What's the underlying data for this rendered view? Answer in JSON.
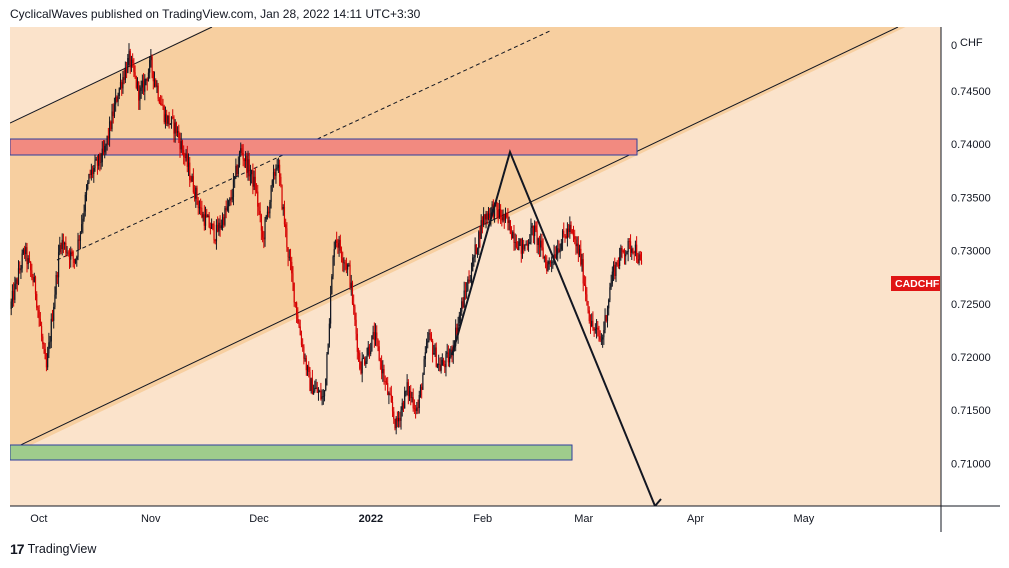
{
  "header": {
    "publisher_line": "CyclicalWaves published on TradingView.com, Jan 28, 2022 14:11 UTC+3:30"
  },
  "footer": {
    "brand": "TradingView",
    "brand_icon": "tradingview-logo-icon"
  },
  "colors": {
    "candle_up": "#131722",
    "candle_down": "#d50000",
    "channel_fill": "#f7cfa0",
    "background": "#fbe3cb",
    "resistance_zone": "#f28a80",
    "support_zone": "#9fcc8c",
    "zone_border": "#2c3e9e",
    "symbol_badge": "#e01414"
  },
  "chart_data": {
    "type": "candlestick",
    "symbol": "CADCHF",
    "currency": "CHF",
    "x_axis": {
      "ticks": [
        "Oct",
        "Nov",
        "Dec",
        "2022",
        "Feb",
        "Mar",
        "Apr",
        "May"
      ],
      "range": [
        "2021-09-23",
        "2022-06-08"
      ]
    },
    "y_axis": {
      "ticks": [
        "0.74500",
        "0.74000",
        "0.73500",
        "0.73000",
        "0.72500",
        "0.72000",
        "0.71500",
        "0.71000"
      ],
      "top_tick": "0",
      "range": [
        0.706,
        0.751
      ]
    },
    "last_price": 0.7283,
    "price_path": [
      [
        "2021-09-23",
        0.7245
      ],
      [
        "2021-09-27",
        0.73
      ],
      [
        "2021-09-30",
        0.7265
      ],
      [
        "2021-10-03",
        0.7185
      ],
      [
        "2021-10-07",
        0.731
      ],
      [
        "2021-10-11",
        0.729
      ],
      [
        "2021-10-15",
        0.737
      ],
      [
        "2021-10-19",
        0.739
      ],
      [
        "2021-10-23",
        0.745
      ],
      [
        "2021-10-26",
        0.748
      ],
      [
        "2021-10-29",
        0.7445
      ],
      [
        "2021-11-01",
        0.7475
      ],
      [
        "2021-11-05",
        0.7425
      ],
      [
        "2021-11-08",
        0.7415
      ],
      [
        "2021-11-12",
        0.737
      ],
      [
        "2021-11-15",
        0.7335
      ],
      [
        "2021-11-19",
        0.7315
      ],
      [
        "2021-11-23",
        0.7345
      ],
      [
        "2021-11-26",
        0.7395
      ],
      [
        "2021-11-30",
        0.736
      ],
      [
        "2021-12-02",
        0.731
      ],
      [
        "2021-12-06",
        0.7385
      ],
      [
        "2021-12-09",
        0.73
      ],
      [
        "2021-12-12",
        0.723
      ],
      [
        "2021-12-15",
        0.7175
      ],
      [
        "2021-12-19",
        0.716
      ],
      [
        "2021-12-22",
        0.7315
      ],
      [
        "2021-12-26",
        0.728
      ],
      [
        "2021-12-29",
        0.719
      ],
      [
        "2022-01-02",
        0.722
      ],
      [
        "2022-01-05",
        0.7175
      ],
      [
        "2022-01-08",
        0.7135
      ],
      [
        "2022-01-11",
        0.717
      ],
      [
        "2022-01-14",
        0.715
      ],
      [
        "2022-01-17",
        0.722
      ],
      [
        "2022-01-20",
        0.719
      ],
      [
        "2022-01-23",
        0.72
      ],
      [
        "2022-01-26",
        0.7245
      ],
      [
        "2022-01-29",
        0.7285
      ],
      [
        "2022-02-01",
        0.733
      ],
      [
        "2022-02-04",
        0.734
      ],
      [
        "2022-02-08",
        0.7325
      ],
      [
        "2022-02-12",
        0.73
      ],
      [
        "2022-02-15",
        0.732
      ],
      [
        "2022-02-19",
        0.7285
      ],
      [
        "2022-02-22",
        0.7305
      ],
      [
        "2022-02-25",
        0.732
      ],
      [
        "2022-02-28",
        0.7295
      ],
      [
        "2022-03-03",
        0.723
      ],
      [
        "2022-03-06",
        0.7215
      ],
      [
        "2022-03-09",
        0.728
      ],
      [
        "2022-03-12",
        0.73
      ],
      [
        "2022-03-15",
        0.7305
      ],
      [
        "2022-03-17",
        0.7283
      ]
    ]
  }
}
